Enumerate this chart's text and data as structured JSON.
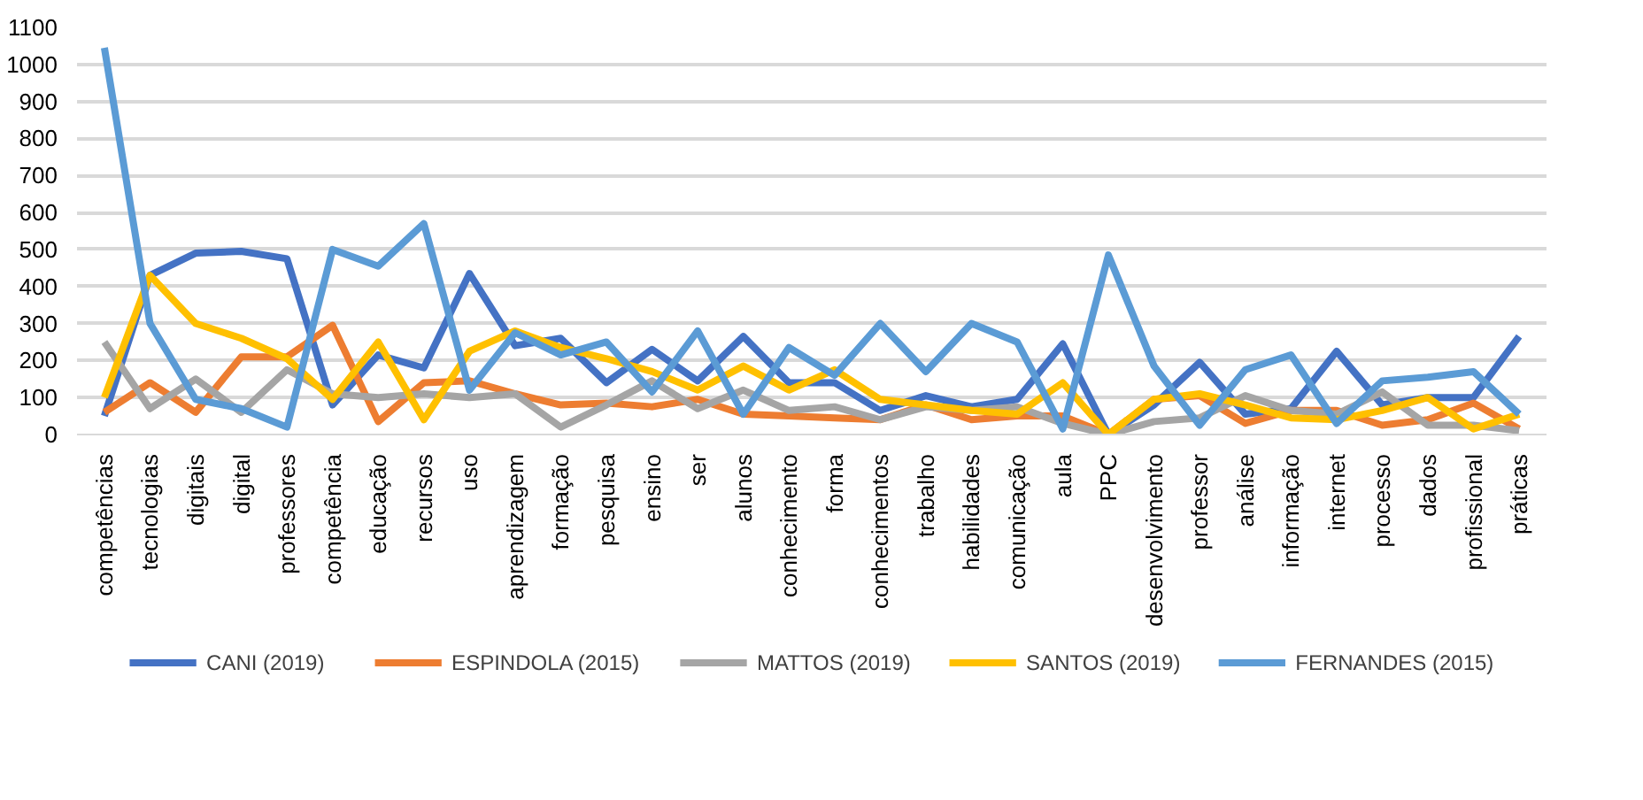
{
  "chart_data": {
    "type": "line",
    "categories": [
      "competências",
      "tecnologias",
      "digitais",
      "digital",
      "professores",
      "competência",
      "educação",
      "recursos",
      "uso",
      "aprendizagem",
      "formação",
      "pesquisa",
      "ensino",
      "ser",
      "alunos",
      "conhecimento",
      "forma",
      "conhecimentos",
      "trabalho",
      "habilidades",
      "comunicação",
      "aula",
      "PPC",
      "desenvolvimento",
      "professor",
      "análise",
      "informação",
      "internet",
      "processo",
      "dados",
      "profissional",
      "práticas"
    ],
    "series": [
      {
        "name": "CANI (2019)",
        "color": "#4472c4",
        "values": [
          50,
          430,
          490,
          495,
          475,
          80,
          215,
          180,
          435,
          240,
          260,
          140,
          230,
          145,
          265,
          140,
          140,
          65,
          105,
          75,
          95,
          245,
          0,
          80,
          195,
          55,
          70,
          225,
          80,
          100,
          100,
          265
        ]
      },
      {
        "name": "ESPINDOLA (2015)",
        "color": "#ed7d31",
        "values": [
          60,
          140,
          60,
          210,
          210,
          295,
          35,
          140,
          145,
          110,
          80,
          85,
          75,
          95,
          55,
          50,
          45,
          40,
          80,
          40,
          50,
          50,
          0,
          95,
          105,
          30,
          65,
          65,
          25,
          40,
          85,
          15
        ]
      },
      {
        "name": "MATTOS (2019)",
        "color": "#a5a5a5",
        "values": [
          250,
          70,
          150,
          60,
          175,
          110,
          100,
          110,
          100,
          110,
          20,
          80,
          145,
          70,
          120,
          65,
          75,
          40,
          75,
          65,
          75,
          30,
          0,
          35,
          45,
          105,
          65,
          55,
          115,
          25,
          25,
          10
        ]
      },
      {
        "name": "SANTOS (2019)",
        "color": "#ffc000",
        "values": [
          100,
          430,
          300,
          260,
          205,
          95,
          250,
          40,
          225,
          280,
          235,
          205,
          170,
          120,
          185,
          120,
          175,
          95,
          80,
          65,
          55,
          140,
          0,
          95,
          110,
          80,
          45,
          40,
          65,
          100,
          15,
          55
        ]
      },
      {
        "name": "FERNANDES (2015)",
        "color": "#5b9bd5",
        "values": [
          1045,
          300,
          95,
          70,
          20,
          500,
          455,
          570,
          120,
          275,
          215,
          250,
          115,
          280,
          55,
          235,
          160,
          300,
          170,
          300,
          250,
          15,
          485,
          185,
          25,
          175,
          215,
          30,
          145,
          155,
          170,
          55
        ]
      }
    ],
    "ylim": [
      0,
      1100
    ],
    "yticks": [
      0,
      100,
      200,
      300,
      400,
      500,
      600,
      700,
      800,
      900,
      1000,
      1100
    ],
    "grid": "y",
    "legend": "bottom",
    "marker": "none",
    "line_style": "solid"
  }
}
